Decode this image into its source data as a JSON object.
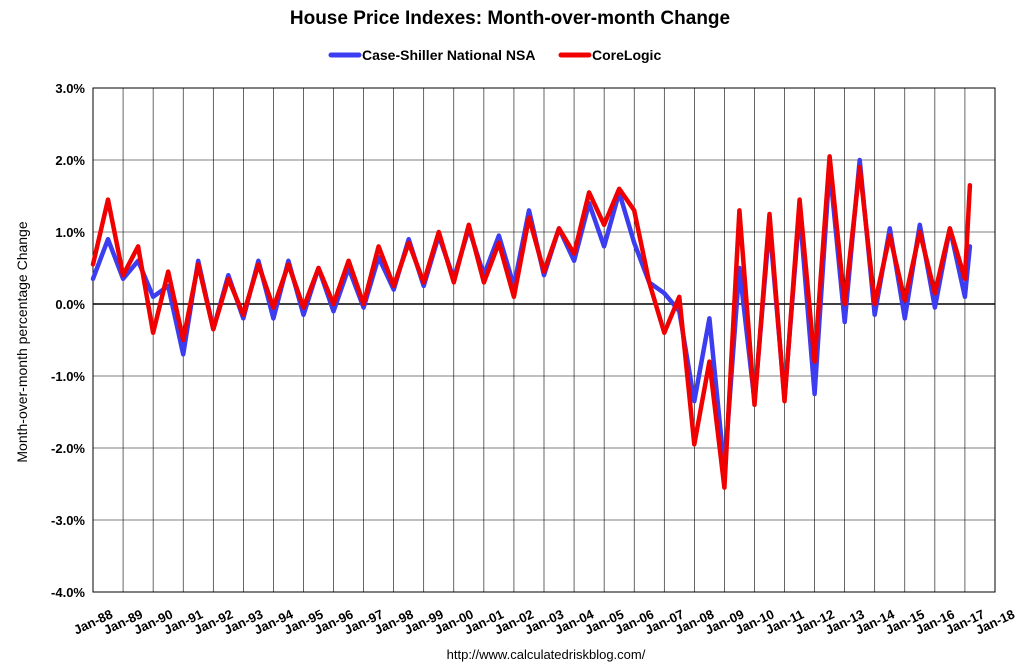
{
  "chart_data": {
    "type": "line",
    "title": "House Price Indexes: Month-over-month Change",
    "ylabel": "Month-over-month percentage Change",
    "xlabel": "",
    "source": "http://www.calculatedriskblog.com/",
    "ylim": [
      -4.0,
      3.0
    ],
    "yticks": [
      3.0,
      2.0,
      1.0,
      0.0,
      -1.0,
      -2.0,
      -3.0,
      -4.0
    ],
    "ytick_labels": [
      "3.0%",
      "2.0%",
      "1.0%",
      "0.0%",
      "-1.0%",
      "-2.0%",
      "-3.0%",
      "-4.0%"
    ],
    "xtick_labels": [
      "Jan-88",
      "Jan-89",
      "Jan-90",
      "Jan-91",
      "Jan-92",
      "Jan-93",
      "Jan-94",
      "Jan-95",
      "Jan-96",
      "Jan-97",
      "Jan-98",
      "Jan-99",
      "Jan-00",
      "Jan-01",
      "Jan-02",
      "Jan-03",
      "Jan-04",
      "Jan-05",
      "Jan-06",
      "Jan-07",
      "Jan-08",
      "Jan-09",
      "Jan-10",
      "Jan-11",
      "Jan-12",
      "Jan-13",
      "Jan-14",
      "Jan-15",
      "Jan-16",
      "Jan-17",
      "Jan-18"
    ],
    "grid": true,
    "legend_position": "top-center",
    "series": [
      {
        "name": "Case-Shiller National NSA",
        "color": "#3c3cf0",
        "x": [
          "1988-01",
          "1988-07",
          "1989-01",
          "1989-07",
          "1990-01",
          "1990-07",
          "1991-01",
          "1991-07",
          "1992-01",
          "1992-07",
          "1993-01",
          "1993-07",
          "1994-01",
          "1994-07",
          "1995-01",
          "1995-07",
          "1996-01",
          "1996-07",
          "1997-01",
          "1997-07",
          "1998-01",
          "1998-07",
          "1999-01",
          "1999-07",
          "2000-01",
          "2000-07",
          "2001-01",
          "2001-07",
          "2002-01",
          "2002-07",
          "2003-01",
          "2003-07",
          "2004-01",
          "2004-07",
          "2005-01",
          "2005-07",
          "2006-01",
          "2006-07",
          "2007-01",
          "2007-07",
          "2008-01",
          "2008-07",
          "2009-01",
          "2009-07",
          "2010-01",
          "2010-07",
          "2011-01",
          "2011-07",
          "2012-01",
          "2012-07",
          "2013-01",
          "2013-07",
          "2014-01",
          "2014-07",
          "2015-01",
          "2015-07",
          "2016-01",
          "2016-07",
          "2017-01",
          "2017-03"
        ],
        "values": [
          0.35,
          0.9,
          0.35,
          0.6,
          0.1,
          0.25,
          -0.7,
          0.6,
          -0.35,
          0.4,
          -0.2,
          0.6,
          -0.2,
          0.6,
          -0.15,
          0.5,
          -0.1,
          0.5,
          -0.05,
          0.65,
          0.2,
          0.9,
          0.25,
          0.95,
          0.35,
          1.05,
          0.4,
          0.95,
          0.25,
          1.3,
          0.4,
          1.05,
          0.6,
          1.4,
          0.8,
          1.55,
          0.85,
          0.3,
          0.15,
          -0.1,
          -1.35,
          -0.2,
          -2.3,
          0.5,
          -1.35,
          1.1,
          -1.3,
          1.3,
          -1.25,
          1.9,
          -0.25,
          2.0,
          -0.15,
          1.05,
          -0.2,
          1.1,
          -0.05,
          1.05,
          0.1,
          0.8
        ]
      },
      {
        "name": "CoreLogic",
        "color": "#f00000",
        "x": [
          "1988-01",
          "1988-07",
          "1989-01",
          "1989-07",
          "1990-01",
          "1990-07",
          "1991-01",
          "1991-07",
          "1992-01",
          "1992-07",
          "1993-01",
          "1993-07",
          "1994-01",
          "1994-07",
          "1995-01",
          "1995-07",
          "1996-01",
          "1996-07",
          "1997-01",
          "1997-07",
          "1998-01",
          "1998-07",
          "1999-01",
          "1999-07",
          "2000-01",
          "2000-07",
          "2001-01",
          "2001-07",
          "2002-01",
          "2002-07",
          "2003-01",
          "2003-07",
          "2004-01",
          "2004-07",
          "2005-01",
          "2005-07",
          "2006-01",
          "2006-07",
          "2007-01",
          "2007-07",
          "2008-01",
          "2008-07",
          "2009-01",
          "2009-07",
          "2010-01",
          "2010-07",
          "2011-01",
          "2011-07",
          "2012-01",
          "2012-07",
          "2013-01",
          "2013-07",
          "2014-01",
          "2014-07",
          "2015-01",
          "2015-07",
          "2016-01",
          "2016-07",
          "2017-01",
          "2017-03"
        ],
        "values": [
          0.55,
          1.45,
          0.4,
          0.8,
          -0.4,
          0.45,
          -0.5,
          0.55,
          -0.35,
          0.35,
          -0.15,
          0.55,
          -0.05,
          0.55,
          -0.05,
          0.5,
          0.0,
          0.6,
          0.0,
          0.8,
          0.25,
          0.85,
          0.3,
          1.0,
          0.3,
          1.1,
          0.3,
          0.85,
          0.1,
          1.2,
          0.45,
          1.05,
          0.7,
          1.55,
          1.1,
          1.6,
          1.3,
          0.3,
          -0.4,
          0.1,
          -1.95,
          -0.8,
          -2.55,
          1.3,
          -1.4,
          1.25,
          -1.35,
          1.45,
          -0.8,
          2.05,
          0.0,
          1.9,
          0.0,
          0.95,
          0.05,
          1.0,
          0.15,
          1.05,
          0.35,
          1.65
        ]
      }
    ]
  }
}
